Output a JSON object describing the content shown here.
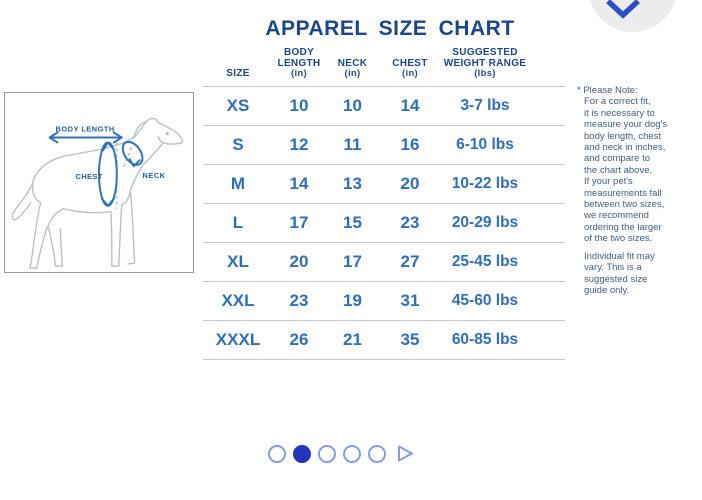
{
  "header": {
    "title": "APPAREL SIZE CHART"
  },
  "colors": {
    "title_navy": "#1b4688",
    "data_blue": "#2e6fb7",
    "note_text": "#3f5e8a",
    "divider_gray": "#c9c9c9",
    "dog_outline_gray": "#b9bfc7",
    "diagram_label_blue": "#1c5fa0",
    "dot_outline": "#8a9ae0",
    "dot_active": "#2334bd",
    "chevron_blue": "#2a4fc9",
    "chevron_circle_bg": "#ececee"
  },
  "diagram": {
    "body_length_label": "BODY LENGTH",
    "chest_label": "CHEST",
    "neck_label": "NECK"
  },
  "table": {
    "col_headers": {
      "size": {
        "l1": "",
        "l2": "SIZE",
        "l3": ""
      },
      "body_length": {
        "l1": "BODY",
        "l2": "LENGTH",
        "l3": "(in)"
      },
      "neck": {
        "l1": "",
        "l2": "NECK",
        "l3": "(in)"
      },
      "chest": {
        "l1": "",
        "l2": "CHEST",
        "l3": "(in)"
      },
      "weight": {
        "l1": "SUGGESTED",
        "l2": "WEIGHT RANGE",
        "l3": "(lbs)"
      }
    },
    "rows": [
      {
        "size": "XS",
        "body_length": "10",
        "neck": "10",
        "chest": "14",
        "weight": "3-7 lbs"
      },
      {
        "size": "S",
        "body_length": "12",
        "neck": "11",
        "chest": "16",
        "weight": "6-10 lbs"
      },
      {
        "size": "M",
        "body_length": "14",
        "neck": "13",
        "chest": "20",
        "weight": "10-22 lbs"
      },
      {
        "size": "L",
        "body_length": "17",
        "neck": "15",
        "chest": "23",
        "weight": "20-29 lbs"
      },
      {
        "size": "XL",
        "body_length": "20",
        "neck": "17",
        "chest": "27",
        "weight": "25-45 lbs"
      },
      {
        "size": "XXL",
        "body_length": "23",
        "neck": "19",
        "chest": "31",
        "weight": "45-60 lbs"
      },
      {
        "size": "XXXL",
        "body_length": "26",
        "neck": "21",
        "chest": "35",
        "weight": "60-85 lbs"
      }
    ]
  },
  "notes": {
    "note1": "* Please Note:\nFor a correct fit,\nit is necessary to\nmeasure your dog's\nbody length, chest\nand neck in inches,\nand compare to\nthe chart above.\nIf your pet's\nmeasurements fall\nbetween two sizes,\nwe recommend\nordering the larger\nof the two sizes.",
    "note2": "Individual fit may\nvary. This is a\nsuggested size\nguide only."
  },
  "pagination": {
    "count": 5,
    "active_index": 1,
    "dots": [
      {
        "active": false
      },
      {
        "active": true
      },
      {
        "active": false
      },
      {
        "active": false
      },
      {
        "active": false
      }
    ]
  }
}
